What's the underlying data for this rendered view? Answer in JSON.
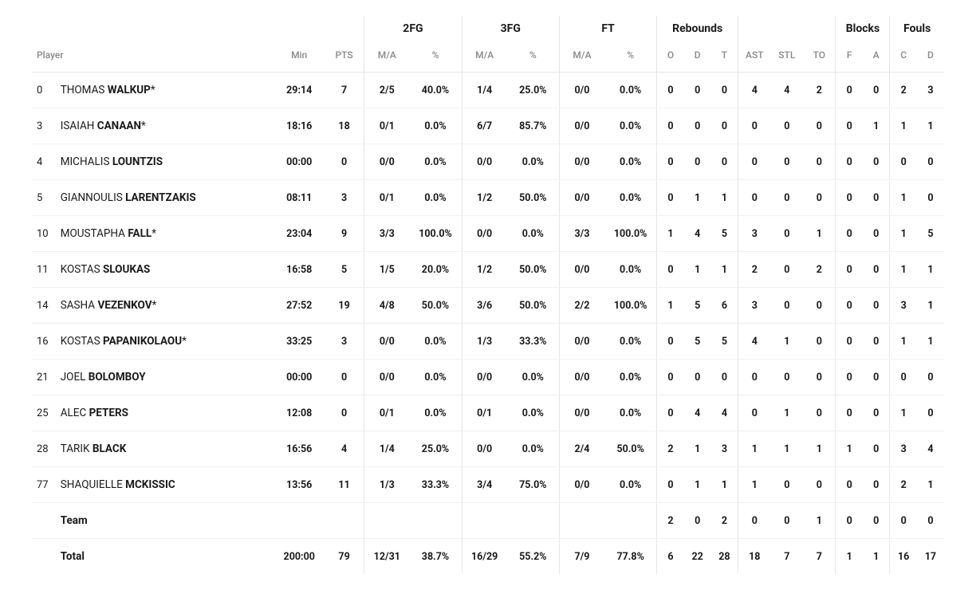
{
  "headers": {
    "groups": {
      "fg2": "2FG",
      "fg3": "3FG",
      "ft": "FT",
      "rebounds": "Rebounds",
      "blocks": "Blocks",
      "fouls": "Fouls"
    },
    "cols": {
      "player": "Player",
      "min": "Min",
      "pts": "PTS",
      "ma": "M/A",
      "pct": "%",
      "o": "O",
      "d": "D",
      "t": "T",
      "ast": "AST",
      "stl": "STL",
      "to": "TO",
      "f": "F",
      "a": "A",
      "c": "C",
      "fd": "D"
    }
  },
  "players": [
    {
      "num": "0",
      "first": "THOMAS",
      "last": "WALKUP",
      "starter": true,
      "min": "29:14",
      "pts": "7",
      "fg2ma": "2/5",
      "fg2pct": "40.0%",
      "fg3ma": "1/4",
      "fg3pct": "25.0%",
      "ftma": "0/0",
      "ftpct": "0.0%",
      "ro": "0",
      "rd": "0",
      "rt": "0",
      "ast": "4",
      "stl": "4",
      "to": "2",
      "bf": "0",
      "ba": "0",
      "fc": "2",
      "fd": "3"
    },
    {
      "num": "3",
      "first": "ISAIAH",
      "last": "CANAAN",
      "starter": true,
      "min": "18:16",
      "pts": "18",
      "fg2ma": "0/1",
      "fg2pct": "0.0%",
      "fg3ma": "6/7",
      "fg3pct": "85.7%",
      "ftma": "0/0",
      "ftpct": "0.0%",
      "ro": "0",
      "rd": "0",
      "rt": "0",
      "ast": "0",
      "stl": "0",
      "to": "0",
      "bf": "0",
      "ba": "1",
      "fc": "1",
      "fd": "1"
    },
    {
      "num": "4",
      "first": "MICHALIS",
      "last": "LOUNTZIS",
      "starter": false,
      "min": "00:00",
      "pts": "0",
      "fg2ma": "0/0",
      "fg2pct": "0.0%",
      "fg3ma": "0/0",
      "fg3pct": "0.0%",
      "ftma": "0/0",
      "ftpct": "0.0%",
      "ro": "0",
      "rd": "0",
      "rt": "0",
      "ast": "0",
      "stl": "0",
      "to": "0",
      "bf": "0",
      "ba": "0",
      "fc": "0",
      "fd": "0"
    },
    {
      "num": "5",
      "first": "GIANNOULIS",
      "last": "LARENTZAKIS",
      "starter": false,
      "min": "08:11",
      "pts": "3",
      "fg2ma": "0/1",
      "fg2pct": "0.0%",
      "fg3ma": "1/2",
      "fg3pct": "50.0%",
      "ftma": "0/0",
      "ftpct": "0.0%",
      "ro": "0",
      "rd": "1",
      "rt": "1",
      "ast": "0",
      "stl": "0",
      "to": "0",
      "bf": "0",
      "ba": "0",
      "fc": "1",
      "fd": "0"
    },
    {
      "num": "10",
      "first": "MOUSTAPHA",
      "last": "FALL",
      "starter": true,
      "min": "23:04",
      "pts": "9",
      "fg2ma": "3/3",
      "fg2pct": "100.0%",
      "fg3ma": "0/0",
      "fg3pct": "0.0%",
      "ftma": "3/3",
      "ftpct": "100.0%",
      "ro": "1",
      "rd": "4",
      "rt": "5",
      "ast": "3",
      "stl": "0",
      "to": "1",
      "bf": "0",
      "ba": "0",
      "fc": "1",
      "fd": "5"
    },
    {
      "num": "11",
      "first": "KOSTAS",
      "last": "SLOUKAS",
      "starter": false,
      "min": "16:58",
      "pts": "5",
      "fg2ma": "1/5",
      "fg2pct": "20.0%",
      "fg3ma": "1/2",
      "fg3pct": "50.0%",
      "ftma": "0/0",
      "ftpct": "0.0%",
      "ro": "0",
      "rd": "1",
      "rt": "1",
      "ast": "2",
      "stl": "0",
      "to": "2",
      "bf": "0",
      "ba": "0",
      "fc": "1",
      "fd": "1"
    },
    {
      "num": "14",
      "first": "SASHA",
      "last": "VEZENKOV",
      "starter": true,
      "min": "27:52",
      "pts": "19",
      "fg2ma": "4/8",
      "fg2pct": "50.0%",
      "fg3ma": "3/6",
      "fg3pct": "50.0%",
      "ftma": "2/2",
      "ftpct": "100.0%",
      "ro": "1",
      "rd": "5",
      "rt": "6",
      "ast": "3",
      "stl": "0",
      "to": "0",
      "bf": "0",
      "ba": "0",
      "fc": "3",
      "fd": "1"
    },
    {
      "num": "16",
      "first": "KOSTAS",
      "last": "PAPANIKOLAOU",
      "starter": true,
      "min": "33:25",
      "pts": "3",
      "fg2ma": "0/0",
      "fg2pct": "0.0%",
      "fg3ma": "1/3",
      "fg3pct": "33.3%",
      "ftma": "0/0",
      "ftpct": "0.0%",
      "ro": "0",
      "rd": "5",
      "rt": "5",
      "ast": "4",
      "stl": "1",
      "to": "0",
      "bf": "0",
      "ba": "0",
      "fc": "1",
      "fd": "1"
    },
    {
      "num": "21",
      "first": "JOEL",
      "last": "BOLOMBOY",
      "starter": false,
      "min": "00:00",
      "pts": "0",
      "fg2ma": "0/0",
      "fg2pct": "0.0%",
      "fg3ma": "0/0",
      "fg3pct": "0.0%",
      "ftma": "0/0",
      "ftpct": "0.0%",
      "ro": "0",
      "rd": "0",
      "rt": "0",
      "ast": "0",
      "stl": "0",
      "to": "0",
      "bf": "0",
      "ba": "0",
      "fc": "0",
      "fd": "0"
    },
    {
      "num": "25",
      "first": "ALEC",
      "last": "PETERS",
      "starter": false,
      "min": "12:08",
      "pts": "0",
      "fg2ma": "0/1",
      "fg2pct": "0.0%",
      "fg3ma": "0/1",
      "fg3pct": "0.0%",
      "ftma": "0/0",
      "ftpct": "0.0%",
      "ro": "0",
      "rd": "4",
      "rt": "4",
      "ast": "0",
      "stl": "1",
      "to": "0",
      "bf": "0",
      "ba": "0",
      "fc": "1",
      "fd": "0"
    },
    {
      "num": "28",
      "first": "TARIK",
      "last": "BLACK",
      "starter": false,
      "min": "16:56",
      "pts": "4",
      "fg2ma": "1/4",
      "fg2pct": "25.0%",
      "fg3ma": "0/0",
      "fg3pct": "0.0%",
      "ftma": "2/4",
      "ftpct": "50.0%",
      "ro": "2",
      "rd": "1",
      "rt": "3",
      "ast": "1",
      "stl": "1",
      "to": "1",
      "bf": "1",
      "ba": "0",
      "fc": "3",
      "fd": "4"
    },
    {
      "num": "77",
      "first": "SHAQUIELLE",
      "last": "MCKISSIC",
      "starter": false,
      "min": "13:56",
      "pts": "11",
      "fg2ma": "1/3",
      "fg2pct": "33.3%",
      "fg3ma": "3/4",
      "fg3pct": "75.0%",
      "ftma": "0/0",
      "ftpct": "0.0%",
      "ro": "0",
      "rd": "1",
      "rt": "1",
      "ast": "1",
      "stl": "0",
      "to": "0",
      "bf": "0",
      "ba": "0",
      "fc": "2",
      "fd": "1"
    }
  ],
  "team": {
    "label": "Team",
    "ro": "2",
    "rd": "0",
    "rt": "2",
    "ast": "0",
    "stl": "0",
    "to": "1",
    "bf": "0",
    "ba": "0",
    "fc": "0",
    "fd": "0"
  },
  "total": {
    "label": "Total",
    "min": "200:00",
    "pts": "79",
    "fg2ma": "12/31",
    "fg2pct": "38.7%",
    "fg3ma": "16/29",
    "fg3pct": "55.2%",
    "ftma": "7/9",
    "ftpct": "77.8%",
    "ro": "6",
    "rd": "22",
    "rt": "28",
    "ast": "18",
    "stl": "7",
    "to": "7",
    "bf": "1",
    "ba": "1",
    "fc": "16",
    "fd": "17"
  },
  "colors": {
    "text": "#1a1a1a",
    "muted": "#888888",
    "border": "#e6e6e6",
    "row_border": "#f0f0f0",
    "background": "#ffffff"
  }
}
